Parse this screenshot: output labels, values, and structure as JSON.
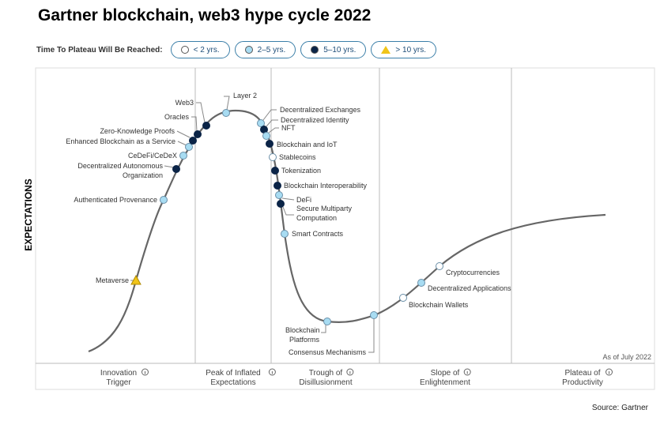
{
  "title": "Gartner blockchain, web3 hype cycle 2022",
  "legend": {
    "label": "Time To Plateau Will Be Reached:",
    "items": [
      {
        "key": "lt2",
        "label": "< 2 yrs.",
        "color": "#ffffff"
      },
      {
        "key": "2to5",
        "label": "2–5 yrs.",
        "color": "#a8dcf2"
      },
      {
        "key": "5to10",
        "label": "5–10 yrs.",
        "color": "#0b2447"
      },
      {
        "key": "gt10",
        "label": "> 10 yrs.",
        "color": "#f0c419"
      }
    ]
  },
  "y_axis_label": "EXPECTATIONS",
  "as_of": "As of July 2022",
  "phases": [
    {
      "line1": "Innovation",
      "line2": "Trigger"
    },
    {
      "line1": "Peak of Inflated",
      "line2": "Expectations"
    },
    {
      "line1": "Trough of",
      "line2": "Disillusionment"
    },
    {
      "line1": "Slope of",
      "line2": "Enlightenment"
    },
    {
      "line1": "Plateau of",
      "line2": "Productivity"
    }
  ],
  "technologies": [
    {
      "name": "Metaverse",
      "plateau": "gt10"
    },
    {
      "name": "Authenticated Provenance",
      "plateau": "2to5"
    },
    {
      "name": "Decentralized Autonomous",
      "name2": "Organization",
      "plateau": "5to10"
    },
    {
      "name": "CeDeFi/CeDeX",
      "plateau": "2to5"
    },
    {
      "name": "Enhanced Blockchain as a Service",
      "plateau": "2to5"
    },
    {
      "name": "Zero-Knowledge Proofs",
      "plateau": "5to10"
    },
    {
      "name": "Oracles",
      "plateau": "5to10"
    },
    {
      "name": "Web3",
      "plateau": "5to10"
    },
    {
      "name": "Layer 2",
      "plateau": "2to5"
    },
    {
      "name": "Decentralized Exchanges",
      "plateau": "2to5"
    },
    {
      "name": "Decentralized Identity",
      "plateau": "5to10"
    },
    {
      "name": "NFT",
      "plateau": "2to5"
    },
    {
      "name": "Blockchain and IoT",
      "plateau": "5to10"
    },
    {
      "name": "Stablecoins",
      "plateau": "lt2"
    },
    {
      "name": "Tokenization",
      "plateau": "5to10"
    },
    {
      "name": "Blockchain Interoperability",
      "plateau": "5to10"
    },
    {
      "name": "DeFi",
      "plateau": "2to5"
    },
    {
      "name": "Secure Multiparty",
      "name2": "Computation",
      "plateau": "5to10"
    },
    {
      "name": "Smart Contracts",
      "plateau": "2to5"
    },
    {
      "name": "Blockchain",
      "name2": "Platforms",
      "plateau": "2to5"
    },
    {
      "name": "Consensus Mechanisms",
      "plateau": "2to5"
    },
    {
      "name": "Blockchain Wallets",
      "plateau": "lt2"
    },
    {
      "name": "Decentralized Applications",
      "plateau": "2to5"
    },
    {
      "name": "Cryptocurrencies",
      "plateau": "lt2"
    }
  ],
  "source": "Source: Gartner"
}
